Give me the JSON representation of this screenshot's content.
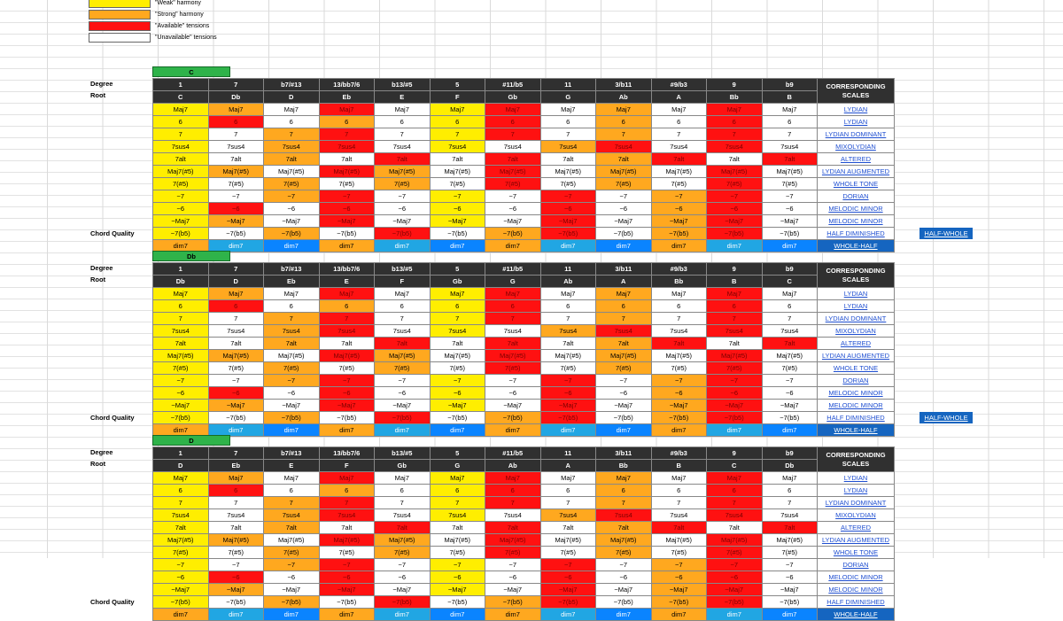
{
  "legend": [
    {
      "label": "\"Weak\" harmony",
      "color": "#ffee00"
    },
    {
      "label": "\"Strong\" harmony",
      "color": "#ffa81f"
    },
    {
      "label": "\"Available\" tensions",
      "color": "#ff1111"
    },
    {
      "label": "\"Unavailable\" tensions",
      "color": "#ffffff"
    }
  ],
  "palette": {
    "y": "#ffee00",
    "o": "#ffa81f",
    "r": "#ff1111",
    "w": "#ffffff",
    "b": "#0a84ff",
    "lb": "#21a6e3"
  },
  "row_labels": {
    "degree": "Degree",
    "root": "Root",
    "chord_quality": "Chord Quality"
  },
  "scales_header": [
    "CORRESPONDING",
    "SCALES"
  ],
  "extra_scale": "HALF-WHOLE",
  "degrees": [
    "1",
    "7",
    "b7/#13",
    "13/bb7/6",
    "b13/#5",
    "5",
    "#11/b5",
    "11",
    "3/b11",
    "#9/b3",
    "9",
    "b9"
  ],
  "qualities": [
    "Maj7",
    "6",
    "7",
    "7sus4",
    "7alt",
    "Maj7(#5)",
    "7(#5)",
    "−7",
    "−6",
    "−Maj7",
    "−7(b5)",
    "dim7"
  ],
  "scales": [
    "LYDIAN",
    "LYDIAN",
    "LYDIAN DOMINANT",
    "MIXOLYDIAN",
    "ALTERED",
    "LYDIAN AUGMENTED",
    "WHOLE TONE",
    "DORIAN",
    "MELODIC MINOR",
    "MELODIC MINOR",
    "HALF DIMINISHED",
    "WHOLE-HALF"
  ],
  "color_pattern": [
    [
      "y",
      "o",
      "w",
      "r",
      "w",
      "y",
      "r",
      "w",
      "o",
      "w",
      "r",
      "w"
    ],
    [
      "y",
      "r",
      "w",
      "o",
      "w",
      "y",
      "r",
      "w",
      "o",
      "w",
      "r",
      "w"
    ],
    [
      "y",
      "w",
      "o",
      "r",
      "w",
      "y",
      "r",
      "w",
      "o",
      "w",
      "r",
      "w"
    ],
    [
      "y",
      "w",
      "o",
      "r",
      "w",
      "y",
      "w",
      "o",
      "r",
      "w",
      "r",
      "w"
    ],
    [
      "y",
      "w",
      "o",
      "w",
      "r",
      "w",
      "r",
      "w",
      "o",
      "r",
      "w",
      "r"
    ],
    [
      "y",
      "o",
      "w",
      "r",
      "o",
      "w",
      "r",
      "w",
      "o",
      "w",
      "r",
      "w"
    ],
    [
      "y",
      "w",
      "o",
      "w",
      "o",
      "w",
      "r",
      "w",
      "o",
      "w",
      "r",
      "w"
    ],
    [
      "y",
      "w",
      "o",
      "r",
      "w",
      "y",
      "w",
      "r",
      "w",
      "o",
      "r",
      "w"
    ],
    [
      "y",
      "r",
      "w",
      "r",
      "w",
      "y",
      "w",
      "r",
      "w",
      "o",
      "r",
      "w"
    ],
    [
      "y",
      "o",
      "w",
      "r",
      "w",
      "y",
      "w",
      "r",
      "w",
      "o",
      "r",
      "w"
    ],
    [
      "y",
      "w",
      "o",
      "w",
      "r",
      "w",
      "o",
      "r",
      "w",
      "o",
      "r",
      "w"
    ],
    [
      "o",
      "lb",
      "b",
      "o",
      "lb",
      "b",
      "o",
      "lb",
      "b",
      "o",
      "lb",
      "b"
    ]
  ],
  "sections": [
    {
      "key": "C",
      "roots": [
        "C",
        "Db",
        "D",
        "Eb",
        "E",
        "F",
        "Gb",
        "G",
        "Ab",
        "A",
        "Bb",
        "B"
      ]
    },
    {
      "key": "Db",
      "roots": [
        "Db",
        "D",
        "Eb",
        "E",
        "F",
        "Gb",
        "G",
        "Ab",
        "A",
        "Bb",
        "B",
        "C"
      ]
    },
    {
      "key": "D",
      "roots": [
        "D",
        "Eb",
        "E",
        "F",
        "Gb",
        "G",
        "Ab",
        "A",
        "Bb",
        "B",
        "C",
        "Db"
      ]
    }
  ]
}
